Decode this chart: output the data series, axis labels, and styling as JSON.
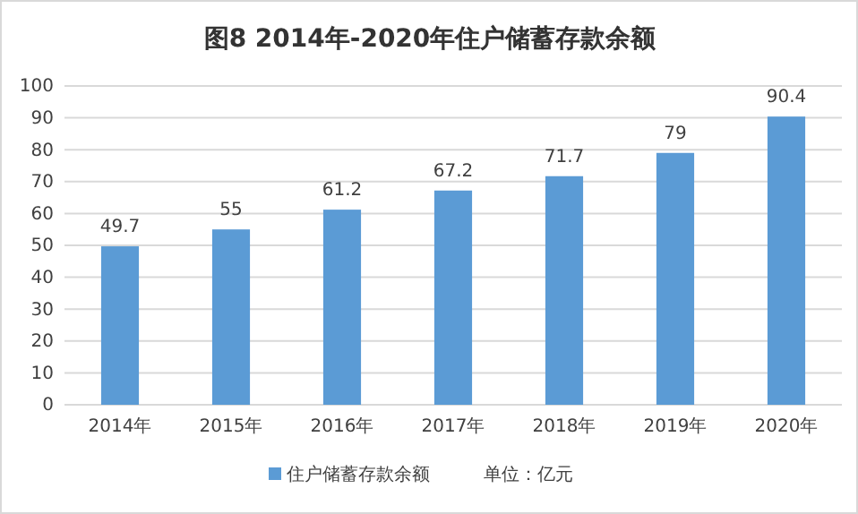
{
  "chart_data": {
    "type": "bar",
    "title": "图8  2014年-2020年住户储蓄存款余额",
    "categories": [
      "2014年",
      "2015年",
      "2016年",
      "2017年",
      "2018年",
      "2019年",
      "2020年"
    ],
    "series": [
      {
        "name": "住户储蓄存款余额",
        "color": "#5b9bd5",
        "values": [
          49.7,
          55,
          61.2,
          67.2,
          71.7,
          79,
          90.4
        ]
      }
    ],
    "ylim": [
      0,
      100
    ],
    "yticks": [
      0,
      10,
      20,
      30,
      40,
      50,
      60,
      70,
      80,
      90,
      100
    ],
    "grid": "y",
    "legend": "bottom",
    "data_labels": true,
    "annotations": [
      "单位：亿元"
    ]
  }
}
